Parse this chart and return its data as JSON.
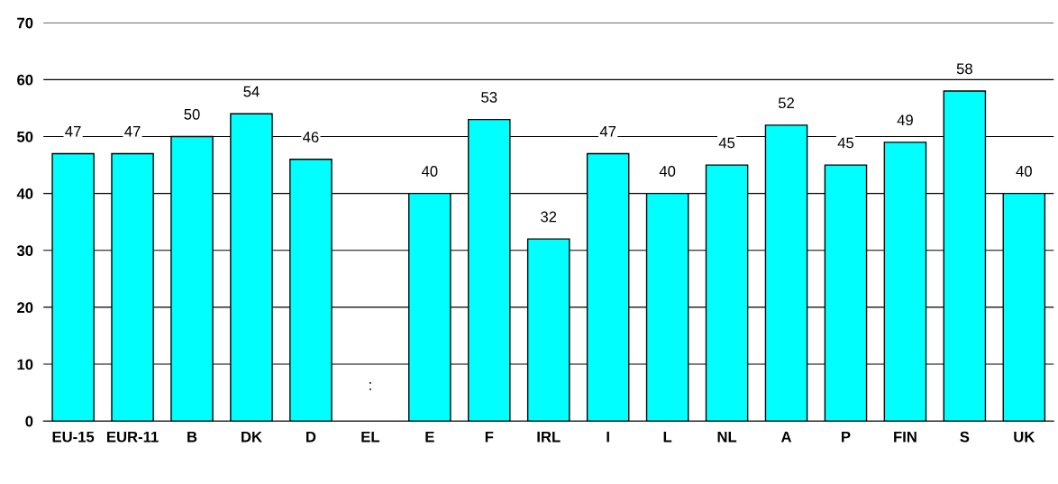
{
  "chart_data": {
    "type": "bar",
    "categories": [
      "EU-15",
      "EUR-11",
      "B",
      "DK",
      "D",
      "EL",
      "E",
      "F",
      "IRL",
      "I",
      "L",
      "NL",
      "A",
      "P",
      "FIN",
      "S",
      "UK"
    ],
    "values": [
      47,
      47,
      50,
      54,
      46,
      null,
      40,
      53,
      32,
      47,
      40,
      45,
      52,
      45,
      49,
      58,
      40
    ],
    "value_labels": [
      "47",
      "47",
      "50",
      "54",
      "46",
      ":",
      "40",
      "53",
      "32",
      "47",
      "40",
      "45",
      "52",
      "45",
      "49",
      "58",
      "40"
    ],
    "color": "#00ffff",
    "ylim": [
      0,
      70
    ],
    "yticks": [
      0,
      10,
      20,
      30,
      40,
      50,
      60,
      70
    ],
    "grid": "y",
    "legend": false
  }
}
